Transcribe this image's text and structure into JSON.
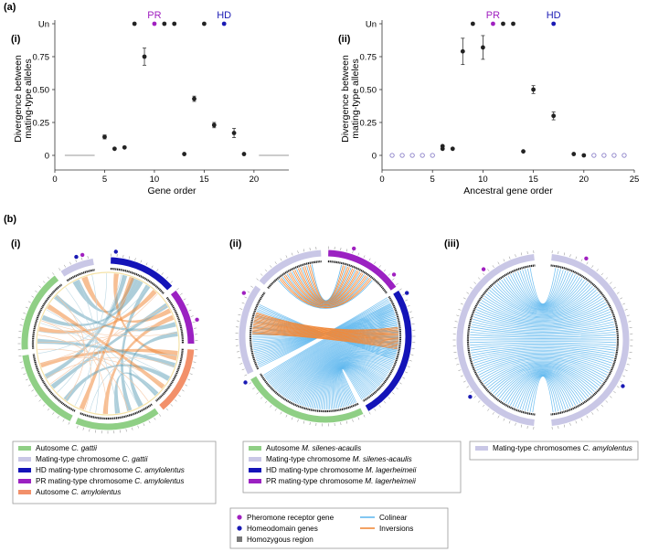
{
  "colors": {
    "pr": "#a020c0",
    "hd": "#1a1ab4",
    "point": "#222222",
    "empty_point": "#8a7fc8",
    "autosome_gattii": "#8fcf85",
    "mating_chr": "#c9c7e6",
    "hd_chr": "#1414b8",
    "pr_chr": "#9b21c2",
    "autosome_amylolentus": "#f2906a",
    "colinear": "#62b9ee",
    "inversion": "#f08a3c",
    "homozygous": "#777777",
    "link_teal": "#6aa6bb"
  },
  "panel_a": {
    "label": "(a)",
    "chart_data": [
      {
        "panel_label": "(i)",
        "type": "scatter",
        "xlabel": "Gene order",
        "ylabel": [
          "Divergence between",
          "mating-type alleles"
        ],
        "xlim": [
          0,
          23.5
        ],
        "ylim": [
          0,
          1
        ],
        "x_ticks": [
          0,
          5,
          10,
          15,
          20
        ],
        "y_ticks": [
          0,
          0.25,
          0.5,
          0.75
        ],
        "y_tick_labels": [
          "0",
          "0.25",
          "0.50",
          "0.75"
        ],
        "top_label": "Un",
        "points": [
          {
            "x": 5,
            "y": 0.14,
            "err": 0.015
          },
          {
            "x": 6,
            "y": 0.05
          },
          {
            "x": 7,
            "y": 0.06
          },
          {
            "x": 9,
            "y": 0.75,
            "err": 0.065
          },
          {
            "x": 13,
            "y": 0.01
          },
          {
            "x": 14,
            "y": 0.43,
            "err": 0.02
          },
          {
            "x": 16,
            "y": 0.23,
            "err": 0.02
          },
          {
            "x": 18,
            "y": 0.17,
            "err": 0.035
          },
          {
            "x": 19,
            "y": 0.01
          }
        ],
        "un_points": [
          8,
          11,
          12,
          15
        ],
        "pr_gene": {
          "x": 10,
          "label": "PR"
        },
        "hd_gene": {
          "x": 17,
          "label": "HD"
        },
        "zero_lines": [
          [
            1,
            4
          ],
          [
            20.5,
            23.5
          ]
        ],
        "empty_points": []
      },
      {
        "panel_label": "(ii)",
        "type": "scatter",
        "xlabel": "Ancestral gene order",
        "ylabel": [
          "Divergence between",
          "mating-type alleles"
        ],
        "xlim": [
          0,
          25
        ],
        "ylim": [
          0,
          1
        ],
        "x_ticks": [
          0,
          5,
          10,
          15,
          20,
          25
        ],
        "y_ticks": [
          0,
          0.25,
          0.5,
          0.75
        ],
        "y_tick_labels": [
          "0",
          "0.25",
          "0.50",
          "0.75"
        ],
        "top_label": "Un",
        "points": [
          {
            "x": 6,
            "y": 0.07
          },
          {
            "x": 6,
            "y": 0.05
          },
          {
            "x": 7,
            "y": 0.05
          },
          {
            "x": 8,
            "y": 0.79,
            "err": 0.1
          },
          {
            "x": 10,
            "y": 0.82,
            "err": 0.09
          },
          {
            "x": 14,
            "y": 0.03
          },
          {
            "x": 15,
            "y": 0.5,
            "err": 0.03
          },
          {
            "x": 17,
            "y": 0.3,
            "err": 0.03
          },
          {
            "x": 19,
            "y": 0.01
          },
          {
            "x": 20,
            "y": 0.0
          }
        ],
        "un_points": [
          9,
          12,
          13
        ],
        "pr_gene": {
          "x": 11,
          "label": "PR"
        },
        "hd_gene": {
          "x": 17,
          "label": "HD"
        },
        "zero_lines": [],
        "empty_points": [
          1,
          2,
          3,
          4,
          5,
          21,
          22,
          23,
          24
        ]
      }
    ]
  },
  "panel_b": {
    "label": "(b)",
    "circos": [
      {
        "panel_label": "(i)"
      },
      {
        "panel_label": "(ii)"
      },
      {
        "panel_label": "(iii)"
      }
    ],
    "legend_i": [
      {
        "swatch": "autosome_gattii",
        "text": "Autosome ",
        "species": "C. gattii"
      },
      {
        "swatch": "mating_chr",
        "text": "Mating-type chromosome ",
        "species": "C. gattii"
      },
      {
        "swatch": "hd_chr",
        "text": "HD mating-type chromosome ",
        "species": "C. amylolentus"
      },
      {
        "swatch": "pr_chr",
        "text": "PR mating-type chromosome ",
        "species": "C. amylolentus"
      },
      {
        "swatch": "autosome_amylolentus",
        "text": "Autosome ",
        "species": "C. amylolentus"
      }
    ],
    "legend_ii": [
      {
        "swatch": "autosome_gattii",
        "text": "Autosome ",
        "species": "M. silenes-acaulis"
      },
      {
        "swatch": "mating_chr",
        "text": "Mating-type chromosome ",
        "species": "M. silenes-acaulis"
      },
      {
        "swatch": "hd_chr",
        "text": "HD mating-type chromosome ",
        "species": "M. lagerheimeii"
      },
      {
        "swatch": "pr_chr",
        "text": "PR mating-type chromosome ",
        "species": "M. lagerheimeii"
      }
    ],
    "legend_iii": [
      {
        "swatch": "mating_chr",
        "text": "Mating-type chromosomes ",
        "species": "C. amylolentus"
      }
    ],
    "legend_bottom": {
      "pheromone": "Pheromone receptor gene",
      "homeodomain": "Homeodomain genes",
      "homozygous": "Homozygous region",
      "colinear": "Colinear",
      "inversions": "Inversions"
    }
  }
}
